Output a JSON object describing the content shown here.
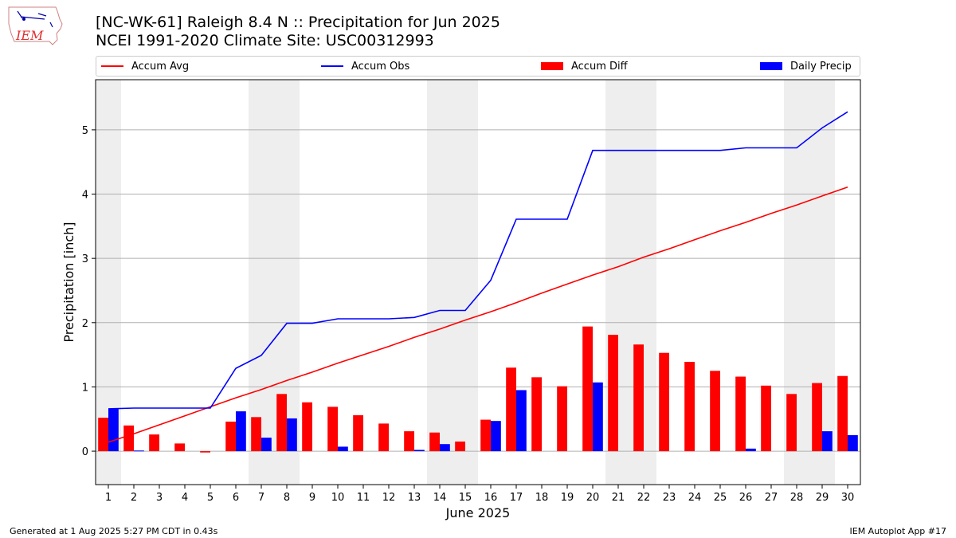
{
  "logo": {
    "text": "IEM",
    "icon": "iem-iowa-logo-icon"
  },
  "title_line1": "[NC-WK-61] Raleigh 8.4 N :: Precipitation for Jun 2025",
  "title_line2": "NCEI 1991-2020 Climate Site: USC00312993",
  "footer": {
    "left": "Generated at 1 Aug 2025 5:27 PM CDT in 0.43s",
    "right": "IEM Autoplot App #17"
  },
  "chart_data": {
    "type": "bar",
    "xlabel": "June 2025",
    "ylabel": "Precipitation [inch]",
    "ylim": [
      -0.52,
      5.78
    ],
    "xlim": [
      0.5,
      30.5
    ],
    "yticks": [
      0,
      1,
      2,
      3,
      4,
      5
    ],
    "grid": "horizontal",
    "legend_placement": "top",
    "weekend_shading_days": [
      1,
      7,
      8,
      14,
      15,
      21,
      22,
      28,
      29
    ],
    "shade_color": "#eeeeee",
    "x": [
      1,
      2,
      3,
      4,
      5,
      6,
      7,
      8,
      9,
      10,
      11,
      12,
      13,
      14,
      15,
      16,
      17,
      18,
      19,
      20,
      21,
      22,
      23,
      24,
      25,
      26,
      27,
      28,
      29,
      30
    ],
    "series": [
      {
        "name": "Accum Avg",
        "kind": "line",
        "color": "#ff0000",
        "values": [
          0.14,
          0.27,
          0.41,
          0.55,
          0.69,
          0.83,
          0.96,
          1.1,
          1.23,
          1.37,
          1.5,
          1.63,
          1.77,
          1.9,
          2.04,
          2.17,
          2.31,
          2.46,
          2.6,
          2.74,
          2.87,
          3.02,
          3.15,
          3.29,
          3.43,
          3.56,
          3.7,
          3.83,
          3.97,
          4.11
        ]
      },
      {
        "name": "Accum Obs",
        "kind": "line",
        "color": "#0000ff",
        "values": [
          0.66,
          0.67,
          0.67,
          0.67,
          0.67,
          1.29,
          1.49,
          1.99,
          1.99,
          2.06,
          2.06,
          2.06,
          2.08,
          2.19,
          2.19,
          2.66,
          3.61,
          3.61,
          3.61,
          4.68,
          4.68,
          4.68,
          4.68,
          4.68,
          4.68,
          4.72,
          4.72,
          4.72,
          5.03,
          5.28
        ]
      },
      {
        "name": "Accum Diff",
        "kind": "bar",
        "color": "#ff0000",
        "values": [
          0.52,
          0.4,
          0.26,
          0.12,
          -0.02,
          0.46,
          0.53,
          0.89,
          0.76,
          0.69,
          0.56,
          0.43,
          0.31,
          0.29,
          0.15,
          0.49,
          1.3,
          1.15,
          1.01,
          1.94,
          1.81,
          1.66,
          1.53,
          1.39,
          1.25,
          1.16,
          1.02,
          0.89,
          1.06,
          1.17
        ]
      },
      {
        "name": "Daily Precip",
        "kind": "bar",
        "color": "#0000ff",
        "values": [
          0.66,
          0.01,
          0.0,
          0.0,
          0.0,
          0.62,
          0.21,
          0.51,
          0.0,
          0.07,
          0.0,
          0.0,
          0.02,
          0.11,
          0.0,
          0.47,
          0.95,
          0.0,
          0.0,
          1.07,
          0.0,
          0.0,
          0.0,
          0.0,
          0.0,
          0.04,
          0.0,
          0.0,
          0.31,
          0.25
        ]
      }
    ]
  }
}
